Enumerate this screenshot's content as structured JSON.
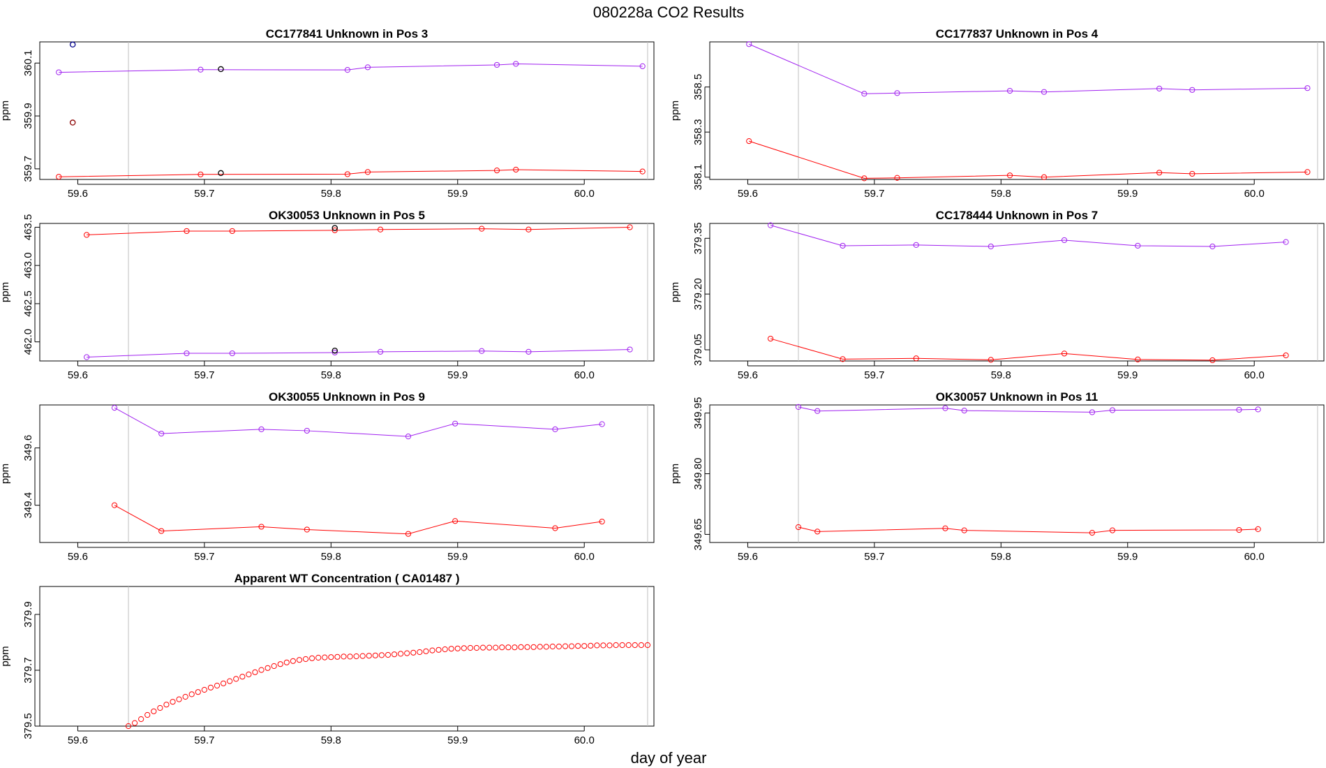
{
  "page": {
    "title": "080228a  CO2 Results",
    "xlabel": "day of year"
  },
  "colors": {
    "upper_series": "#a020f0",
    "lower_series": "#ff0000",
    "flagged_point": "#000000",
    "reference_line": "#bebebe"
  },
  "chart_data": [
    {
      "type": "line",
      "title": "CC177841    Unknown in Pos 3",
      "ylabel": "ppm",
      "xlim": [
        59.57,
        60.055
      ],
      "ylim": [
        359.66,
        360.18
      ],
      "xticks": [
        "59.6",
        "59.7",
        "59.8",
        "59.9",
        "60.0"
      ],
      "yticks": [
        "359.7",
        "359.9",
        "360.1"
      ],
      "reference_x": [
        59.64,
        60.05
      ],
      "series": [
        {
          "name": "upper",
          "color": "#a020f0",
          "x": [
            59.585,
            59.697,
            59.813,
            59.829,
            59.931,
            59.946,
            60.046
          ],
          "y": [
            360.065,
            360.075,
            360.074,
            360.084,
            360.093,
            360.097,
            360.088
          ]
        },
        {
          "name": "lower",
          "color": "#ff0000",
          "x": [
            59.585,
            59.697,
            59.813,
            59.829,
            59.931,
            59.946,
            60.046
          ],
          "y": [
            359.67,
            359.679,
            359.68,
            359.688,
            359.694,
            359.697,
            359.69
          ]
        }
      ],
      "flagged_points": [
        {
          "x": 59.596,
          "y": 360.17,
          "color": "#00008b"
        },
        {
          "x": 59.596,
          "y": 359.875,
          "color": "#8b0000"
        },
        {
          "x": 59.713,
          "y": 360.077,
          "color": "#000000"
        },
        {
          "x": 59.713,
          "y": 359.684,
          "color": "#000000"
        }
      ]
    },
    {
      "type": "line",
      "title": "CC177837    Unknown in Pos 4",
      "ylabel": "ppm",
      "xlim": [
        59.57,
        60.055
      ],
      "ylim": [
        358.09,
        358.7
      ],
      "xticks": [
        "59.6",
        "59.7",
        "59.8",
        "59.9",
        "60.0"
      ],
      "yticks": [
        "358.1",
        "358.3",
        "358.5"
      ],
      "reference_x": [
        59.64,
        60.05
      ],
      "series": [
        {
          "name": "upper",
          "color": "#a020f0",
          "x": [
            59.601,
            59.692,
            59.718,
            59.807,
            59.834,
            59.925,
            59.951,
            60.042
          ],
          "y": [
            358.69,
            358.47,
            358.473,
            358.483,
            358.478,
            358.493,
            358.487,
            358.495
          ]
        },
        {
          "name": "lower",
          "color": "#ff0000",
          "x": [
            59.601,
            59.692,
            59.718,
            59.807,
            59.834,
            59.925,
            59.951,
            60.042
          ],
          "y": [
            358.26,
            358.095,
            358.097,
            358.108,
            358.1,
            358.12,
            358.115,
            358.123
          ]
        }
      ],
      "flagged_points": []
    },
    {
      "type": "line",
      "title": "OK30053    Unknown in Pos 5",
      "ylabel": "ppm",
      "xlim": [
        59.57,
        60.055
      ],
      "ylim": [
        461.75,
        463.55
      ],
      "xticks": [
        "59.6",
        "59.7",
        "59.8",
        "59.9",
        "60.0"
      ],
      "yticks": [
        "462.0",
        "462.5",
        "463.0",
        "463.5"
      ],
      "reference_x": [
        59.64,
        60.05
      ],
      "series": [
        {
          "name": "upper",
          "color": "#ff0000",
          "x": [
            59.607,
            59.686,
            59.722,
            59.803,
            59.839,
            59.919,
            59.956,
            60.036
          ],
          "y": [
            463.4,
            463.45,
            463.45,
            463.46,
            463.47,
            463.48,
            463.47,
            463.5
          ]
        },
        {
          "name": "lower",
          "color": "#a020f0",
          "x": [
            59.607,
            59.686,
            59.722,
            59.803,
            59.839,
            59.919,
            59.956,
            60.036
          ],
          "y": [
            461.8,
            461.85,
            461.85,
            461.86,
            461.87,
            461.88,
            461.87,
            461.9
          ]
        }
      ],
      "flagged_points": [
        {
          "x": 59.803,
          "y": 463.49,
          "color": "#000000"
        },
        {
          "x": 59.803,
          "y": 461.885,
          "color": "#000000"
        }
      ]
    },
    {
      "type": "line",
      "title": "CC178444    Unknown in Pos 7",
      "ylabel": "ppm",
      "xlim": [
        59.57,
        60.055
      ],
      "ylim": [
        379.02,
        379.39
      ],
      "xticks": [
        "59.6",
        "59.7",
        "59.8",
        "59.9",
        "60.0"
      ],
      "yticks": [
        "379.05",
        "379.20",
        "379.35"
      ],
      "reference_x": [
        59.64,
        60.05
      ],
      "series": [
        {
          "name": "upper",
          "color": "#a020f0",
          "x": [
            59.618,
            59.675,
            59.733,
            59.792,
            59.85,
            59.908,
            59.967,
            60.025
          ],
          "y": [
            379.385,
            379.33,
            379.332,
            379.328,
            379.345,
            379.33,
            379.328,
            379.34
          ]
        },
        {
          "name": "lower",
          "color": "#ff0000",
          "x": [
            59.618,
            59.675,
            59.733,
            59.792,
            59.85,
            59.908,
            59.967,
            60.025
          ],
          "y": [
            379.08,
            379.025,
            379.027,
            379.023,
            379.04,
            379.024,
            379.022,
            379.035
          ]
        }
      ],
      "flagged_points": []
    },
    {
      "type": "line",
      "title": "OK30055    Unknown in Pos 9",
      "ylabel": "ppm",
      "xlim": [
        59.57,
        60.055
      ],
      "ylim": [
        349.27,
        349.75
      ],
      "xticks": [
        "59.6",
        "59.7",
        "59.8",
        "59.9",
        "60.0"
      ],
      "yticks": [
        "349.4",
        "349.6"
      ],
      "reference_x": [
        59.64,
        60.05
      ],
      "series": [
        {
          "name": "upper",
          "color": "#a020f0",
          "x": [
            59.629,
            59.666,
            59.745,
            59.781,
            59.861,
            59.898,
            59.977,
            60.014
          ],
          "y": [
            349.74,
            349.65,
            349.665,
            349.66,
            349.64,
            349.685,
            349.665,
            349.683
          ]
        },
        {
          "name": "lower",
          "color": "#ff0000",
          "x": [
            59.629,
            59.666,
            59.745,
            59.781,
            59.861,
            59.898,
            59.977,
            60.014
          ],
          "y": [
            349.4,
            349.31,
            349.325,
            349.315,
            349.3,
            349.345,
            349.32,
            349.343
          ]
        }
      ],
      "flagged_points": []
    },
    {
      "type": "line",
      "title": "OK30057    Unknown in Pos 11",
      "ylabel": "ppm",
      "xlim": [
        59.57,
        60.055
      ],
      "ylim": [
        349.63,
        349.97
      ],
      "xticks": [
        "59.6",
        "59.7",
        "59.8",
        "59.9",
        "60.0"
      ],
      "yticks": [
        "349.65",
        "349.80",
        "349.95"
      ],
      "reference_x": [
        59.64,
        60.05
      ],
      "series": [
        {
          "name": "upper",
          "color": "#a020f0",
          "x": [
            59.64,
            59.655,
            59.756,
            59.771,
            59.872,
            59.888,
            59.988,
            60.003
          ],
          "y": [
            349.965,
            349.955,
            349.962,
            349.956,
            349.952,
            349.957,
            349.958,
            349.959
          ]
        },
        {
          "name": "lower",
          "color": "#ff0000",
          "x": [
            59.64,
            59.655,
            59.756,
            59.771,
            59.872,
            59.888,
            59.988,
            60.003
          ],
          "y": [
            349.668,
            349.657,
            349.665,
            349.66,
            349.654,
            349.66,
            349.661,
            349.663
          ]
        }
      ],
      "flagged_points": []
    },
    {
      "type": "scatter",
      "title": "Apparent WT Concentration ( CA01487 )",
      "ylabel": "ppm",
      "xlim": [
        59.57,
        60.055
      ],
      "ylim": [
        379.5,
        380.0
      ],
      "xticks": [
        "59.6",
        "59.7",
        "59.8",
        "59.9",
        "60.0"
      ],
      "yticks": [
        "379.5",
        "379.7",
        "379.9"
      ],
      "reference_x": [
        59.64,
        60.05
      ],
      "series": [
        {
          "name": "WT",
          "color": "#ff0000",
          "x": [
            59.64,
            59.645,
            59.65,
            59.655,
            59.66,
            59.665,
            59.67,
            59.675,
            59.68,
            59.685,
            59.69,
            59.695,
            59.7,
            59.705,
            59.71,
            59.715,
            59.72,
            59.725,
            59.73,
            59.735,
            59.74,
            59.745,
            59.75,
            59.755,
            59.76,
            59.765,
            59.77,
            59.775,
            59.78,
            59.785,
            59.79,
            59.795,
            59.8,
            59.805,
            59.81,
            59.815,
            59.82,
            59.825,
            59.83,
            59.835,
            59.84,
            59.845,
            59.85,
            59.855,
            59.86,
            59.865,
            59.87,
            59.875,
            59.88,
            59.885,
            59.89,
            59.895,
            59.9,
            59.905,
            59.91,
            59.915,
            59.92,
            59.925,
            59.93,
            59.935,
            59.94,
            59.945,
            59.95,
            59.955,
            59.96,
            59.965,
            59.97,
            59.975,
            59.98,
            59.985,
            59.99,
            59.995,
            60.0,
            60.005,
            60.01,
            60.015,
            60.02,
            60.025,
            60.03,
            60.035,
            60.04,
            60.045,
            60.05
          ],
          "y": [
            379.5,
            379.511,
            379.525,
            379.54,
            379.553,
            379.565,
            379.577,
            379.587,
            379.596,
            379.605,
            379.614,
            379.622,
            379.63,
            379.638,
            379.645,
            379.653,
            379.661,
            379.669,
            379.677,
            379.685,
            379.693,
            379.701,
            379.708,
            379.715,
            379.722,
            379.728,
            379.733,
            379.737,
            379.74,
            379.743,
            379.745,
            379.746,
            379.747,
            379.748,
            379.749,
            379.749,
            379.75,
            379.751,
            379.752,
            379.753,
            379.754,
            379.755,
            379.757,
            379.759,
            379.761,
            379.763,
            379.765,
            379.768,
            379.771,
            379.773,
            379.775,
            379.777,
            379.778,
            379.779,
            379.78,
            379.78,
            379.781,
            379.781,
            379.781,
            379.782,
            379.782,
            379.782,
            379.783,
            379.783,
            379.783,
            379.784,
            379.784,
            379.785,
            379.785,
            379.786,
            379.786,
            379.787,
            379.787,
            379.788,
            379.789,
            379.789,
            379.789,
            379.79,
            379.79,
            379.79,
            379.79,
            379.79,
            379.79
          ]
        }
      ],
      "flagged_points": []
    }
  ]
}
